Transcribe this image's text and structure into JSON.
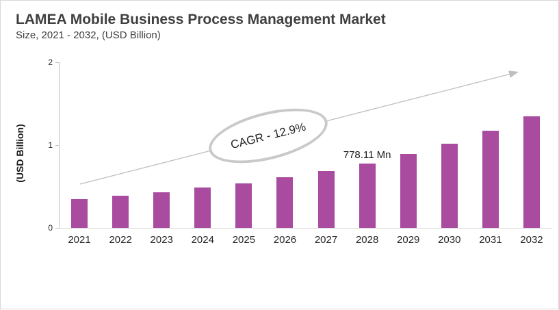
{
  "header": {
    "title": "LAMEA Mobile Business Process Management Market",
    "subtitle": "Size, 2021 - 2032, (USD Billion)"
  },
  "chart_data": {
    "type": "bar",
    "title": "LAMEA Mobile Business Process Management Market",
    "subtitle": "Size, 2021 - 2032, (USD Billion)",
    "categories": [
      "2021",
      "2022",
      "2023",
      "2024",
      "2025",
      "2026",
      "2027",
      "2028",
      "2029",
      "2030",
      "2031",
      "2032"
    ],
    "values": [
      0.35,
      0.39,
      0.43,
      0.49,
      0.54,
      0.61,
      0.69,
      0.778,
      0.89,
      1.02,
      1.17,
      1.35
    ],
    "xlabel": "",
    "ylabel": "(USD Billion)",
    "unit": "USD Billion",
    "ylim": [
      0,
      2
    ],
    "yticks": [
      "0",
      "1",
      "2"
    ],
    "grid": false,
    "legend": false,
    "data_label": {
      "category": "2028",
      "text": "778.11 Mn"
    },
    "annotation": {
      "text": "CAGR - 12.9%"
    },
    "trend_arrow": {
      "present": true,
      "direction": "up-right"
    }
  },
  "colors": {
    "bar": "#A94B9F",
    "arrow": "#BFBFBF",
    "ellipse_stroke": "#C9C9C9",
    "axis_line": "#BFBFBF",
    "baseline": "#D9D9D9",
    "title_text": "#404040",
    "axis_text": "#262626",
    "background": "#FFFFFF",
    "border": "#D8D8D8"
  }
}
